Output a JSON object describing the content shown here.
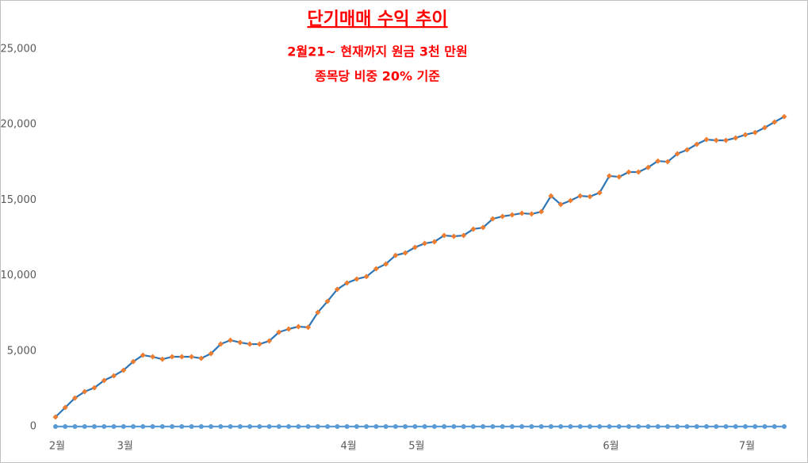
{
  "chart_data": {
    "type": "line",
    "title": "단기매매 수익 추이",
    "subtitle": [
      "2월21~ 현재까지 원금 3천 만원",
      "종목당 비중 20% 기준"
    ],
    "categories": [
      "2월",
      null,
      null,
      null,
      null,
      null,
      null,
      "3월",
      null,
      null,
      null,
      null,
      null,
      null,
      null,
      null,
      null,
      null,
      null,
      null,
      null,
      null,
      null,
      null,
      null,
      null,
      null,
      null,
      null,
      null,
      "4월",
      null,
      null,
      null,
      null,
      null,
      null,
      "5월",
      null,
      null,
      null,
      null,
      null,
      null,
      null,
      null,
      null,
      null,
      null,
      null,
      null,
      null,
      null,
      null,
      null,
      null,
      null,
      "6월",
      null,
      null,
      null,
      null,
      null,
      null,
      null,
      null,
      null,
      null,
      null,
      null,
      null,
      "7월",
      null,
      null,
      null,
      null
    ],
    "series": [
      {
        "color": "#2e75b6",
        "marker_color": "#ed7d31",
        "marker": "diamond",
        "values": [
          630,
          1260,
          1890,
          2310,
          2570,
          3050,
          3360,
          3730,
          4300,
          4730,
          4620,
          4460,
          4620,
          4620,
          4620,
          4520,
          4830,
          5460,
          5720,
          5570,
          5460,
          5460,
          5670,
          6250,
          6460,
          6620,
          6570,
          7560,
          8300,
          9090,
          9510,
          9770,
          9930,
          10450,
          10770,
          11340,
          11500,
          11870,
          12130,
          12240,
          12660,
          12600,
          12660,
          13080,
          13180,
          13760,
          13920,
          14020,
          14130,
          14080,
          14230,
          15280,
          14710,
          14970,
          15280,
          15230,
          15490,
          16600,
          16540,
          16860,
          16860,
          17170,
          17590,
          17540,
          18070,
          18330,
          18700,
          19010,
          18960,
          18960,
          19120,
          19330,
          19480,
          19800,
          20170,
          20530
        ]
      },
      {
        "color": "#5b9bd5",
        "marker_color": "#5b9bd5",
        "marker": "circle",
        "values": [
          0,
          0,
          0,
          0,
          0,
          0,
          0,
          0,
          0,
          0,
          0,
          0,
          0,
          0,
          0,
          0,
          0,
          0,
          0,
          0,
          0,
          0,
          0,
          0,
          0,
          0,
          0,
          0,
          0,
          0,
          0,
          0,
          0,
          0,
          0,
          0,
          0,
          0,
          0,
          0,
          0,
          0,
          0,
          0,
          0,
          0,
          0,
          0,
          0,
          0,
          0,
          0,
          0,
          0,
          0,
          0,
          0,
          0,
          0,
          0,
          0,
          0,
          0,
          0,
          0,
          0,
          0,
          0,
          0,
          0,
          0,
          0,
          0,
          0,
          0,
          0
        ]
      }
    ],
    "ylim": [
      0,
      25000
    ],
    "yticks": [
      0,
      {
        "value": 5000,
        "label": "5,000"
      },
      {
        "value": 10000,
        "label": "10,000"
      },
      {
        "value": 15000,
        "label": "15,000"
      },
      {
        "value": 20000,
        "label": "20,000"
      },
      {
        "value": 25000,
        "label": "25,000"
      }
    ],
    "grid": false
  }
}
